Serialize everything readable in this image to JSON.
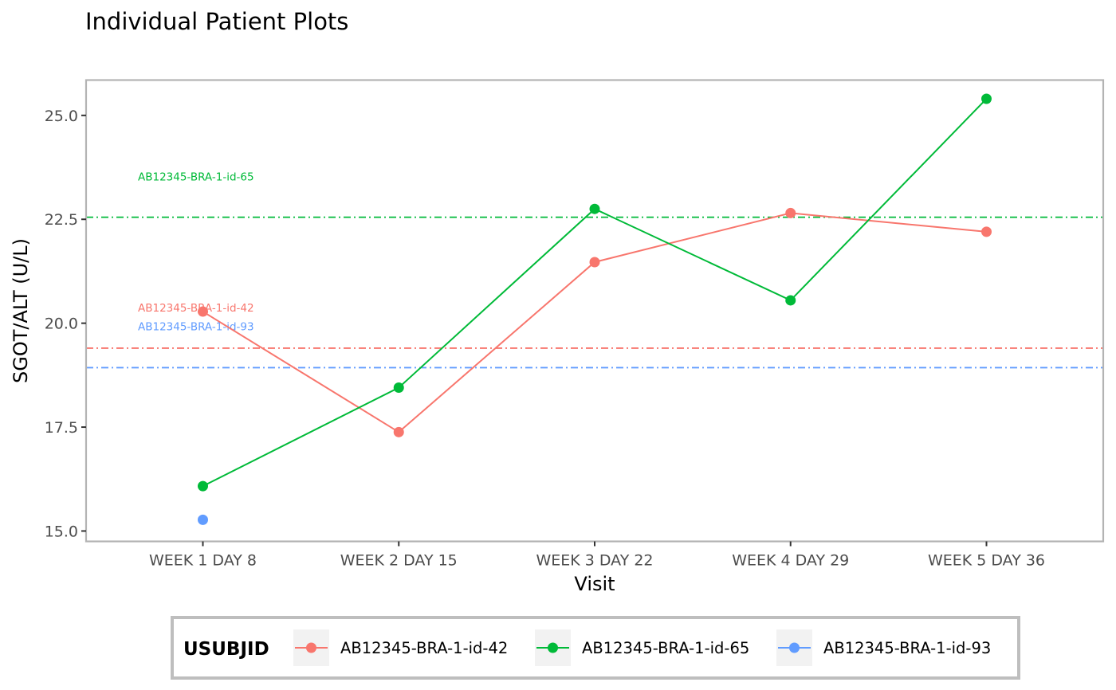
{
  "chart_data": {
    "type": "line",
    "title": "Individual Patient Plots",
    "xlabel": "Visit",
    "ylabel": "SGOT/ALT (U/L)",
    "categories": [
      "WEEK 1 DAY 8",
      "WEEK 2 DAY 15",
      "WEEK 3 DAY 22",
      "WEEK 4 DAY 29",
      "WEEK 5 DAY 36"
    ],
    "ylim": [
      14.75,
      25.85
    ],
    "yticks": [
      "15.0",
      "17.5",
      "20.0",
      "22.5",
      "25.0"
    ],
    "grid": false,
    "legend": {
      "title": "USUBJID",
      "position": "bottom"
    },
    "series": [
      {
        "name": "AB12345-BRA-1-id-42",
        "color": "#F8766D",
        "values": [
          20.28,
          17.38,
          21.47,
          22.65,
          22.2
        ],
        "reference_value": 19.4,
        "reference_label": "AB12345-BRA-1-id-42"
      },
      {
        "name": "AB12345-BRA-1-id-65",
        "color": "#00BA38",
        "values": [
          16.08,
          18.45,
          22.75,
          20.55,
          25.4
        ],
        "reference_value": 22.55,
        "reference_label": "AB12345-BRA-1-id-65"
      },
      {
        "name": "AB12345-BRA-1-id-93",
        "color": "#619CFF",
        "values": [
          15.27,
          null,
          null,
          null,
          null
        ],
        "reference_value": 18.93,
        "reference_label": "AB12345-BRA-1-id-93"
      }
    ]
  }
}
